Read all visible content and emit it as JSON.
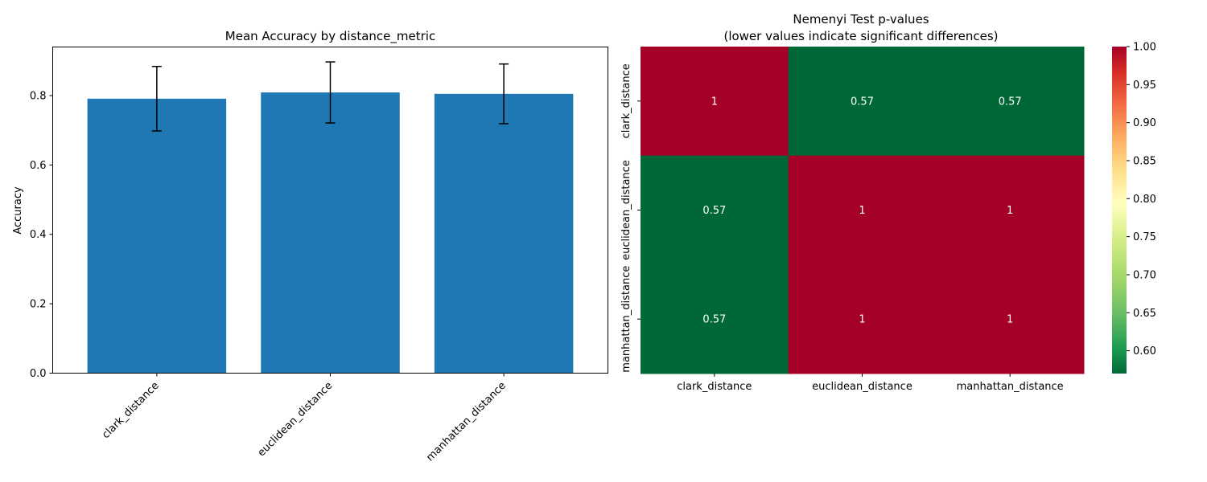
{
  "chart_data": [
    {
      "type": "bar",
      "title": "Mean Accuracy by distance_metric",
      "xlabel": "",
      "ylabel": "Accuracy",
      "categories": [
        "clark_distance",
        "euclidean_distance",
        "manhattan_distance"
      ],
      "values": [
        0.791,
        0.809,
        0.805
      ],
      "errors": [
        0.093,
        0.088,
        0.086
      ],
      "ylim": [
        0,
        0.94
      ],
      "yticks": [
        0.0,
        0.2,
        0.4,
        0.6,
        0.8
      ],
      "ytick_labels": [
        "0.0",
        "0.2",
        "0.4",
        "0.6",
        "0.8"
      ],
      "bar_color": "#1f77b4",
      "grid": false
    },
    {
      "type": "heatmap",
      "title": "Nemenyi Test p-values",
      "subtitle": "(lower values indicate significant differences)",
      "rows": [
        "clark_distance",
        "euclidean_distance",
        "manhattan_distance"
      ],
      "columns": [
        "clark_distance",
        "euclidean_distance",
        "manhattan_distance"
      ],
      "values": [
        [
          1,
          0.57,
          0.57
        ],
        [
          0.57,
          1,
          1
        ],
        [
          0.57,
          1,
          1
        ]
      ],
      "cell_labels": [
        [
          "1",
          "0.57",
          "0.57"
        ],
        [
          "0.57",
          "1",
          "1"
        ],
        [
          "0.57",
          "1",
          "1"
        ]
      ],
      "colormap": "RdYlGn_r",
      "color_low": "#006837",
      "color_high": "#a50026",
      "vmin": 0.57,
      "vmax": 1.0,
      "colorbar_ticks": [
        0.6,
        0.65,
        0.7,
        0.75,
        0.8,
        0.85,
        0.9,
        0.95,
        1.0
      ],
      "colorbar_tick_labels": [
        "0.60",
        "0.65",
        "0.70",
        "0.75",
        "0.80",
        "0.85",
        "0.90",
        "0.95",
        "1.00"
      ],
      "legend": "colorbar-right"
    }
  ]
}
